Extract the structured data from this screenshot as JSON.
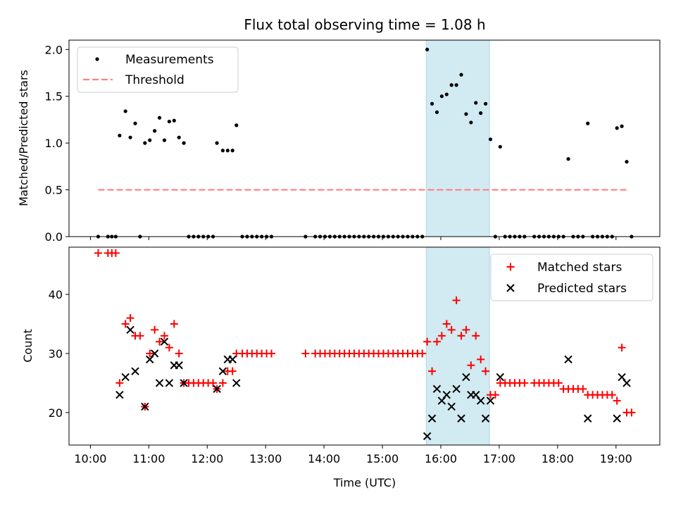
{
  "chart_data": {
    "type": "scatter",
    "title": "Flux total observing time = 1.08 h",
    "xlabel": "Time (UTC)",
    "x_ticks": [
      "10:00",
      "11:00",
      "12:00",
      "13:00",
      "14:00",
      "15:00",
      "16:00",
      "17:00",
      "18:00",
      "19:00"
    ],
    "xlim": [
      "09:38",
      "19:45"
    ],
    "shaded_interval": [
      "15:45",
      "16:50"
    ],
    "colors": {
      "shade": "#add8e6",
      "matched": "#ff0000",
      "predicted": "#000000",
      "threshold": "#ff7f7f",
      "measure": "#000000"
    },
    "panels": [
      {
        "id": "ratio",
        "ylabel": "Matched/Predicted stars",
        "ylim": [
          0,
          2.1
        ],
        "y_ticks": [
          "0.0",
          "0.5",
          "1.0",
          "1.5",
          "2.0"
        ],
        "legend": {
          "placement": "upper-left",
          "entries": [
            "Measurements",
            "Threshold"
          ]
        },
        "threshold": {
          "name": "Threshold",
          "value": 0.5,
          "x_start": "10:08",
          "x_end": "19:13"
        },
        "measurements": {
          "name": "Measurements",
          "points": [
            [
              "10:08",
              0
            ],
            [
              "10:18",
              0
            ],
            [
              "10:22",
              0
            ],
            [
              "10:26",
              0
            ],
            [
              "10:30",
              1.08
            ],
            [
              "10:36",
              1.34
            ],
            [
              "10:41",
              1.06
            ],
            [
              "10:46",
              1.21
            ],
            [
              "10:51",
              0
            ],
            [
              "10:56",
              1.0
            ],
            [
              "11:01",
              1.03
            ],
            [
              "11:06",
              1.13
            ],
            [
              "11:11",
              1.27
            ],
            [
              "11:16",
              1.03
            ],
            [
              "11:21",
              1.23
            ],
            [
              "11:26",
              1.24
            ],
            [
              "11:31",
              1.06
            ],
            [
              "11:36",
              1.0
            ],
            [
              "11:41",
              0
            ],
            [
              "11:46",
              0
            ],
            [
              "11:51",
              0
            ],
            [
              "11:56",
              0
            ],
            [
              "12:01",
              0
            ],
            [
              "12:06",
              0
            ],
            [
              "12:10",
              1.0
            ],
            [
              "12:16",
              0.92
            ],
            [
              "12:21",
              0.92
            ],
            [
              "12:26",
              0.92
            ],
            [
              "12:30",
              1.19
            ],
            [
              "12:36",
              0
            ],
            [
              "12:41",
              0
            ],
            [
              "12:46",
              0
            ],
            [
              "12:51",
              0
            ],
            [
              "12:56",
              0
            ],
            [
              "13:01",
              0
            ],
            [
              "13:06",
              0
            ],
            [
              "13:41",
              0
            ],
            [
              "13:51",
              0
            ],
            [
              "13:56",
              0
            ],
            [
              "14:01",
              0
            ],
            [
              "14:06",
              0
            ],
            [
              "14:11",
              0
            ],
            [
              "14:16",
              0
            ],
            [
              "14:21",
              0
            ],
            [
              "14:26",
              0
            ],
            [
              "14:31",
              0
            ],
            [
              "14:36",
              0
            ],
            [
              "14:41",
              0
            ],
            [
              "14:46",
              0
            ],
            [
              "14:51",
              0
            ],
            [
              "14:56",
              0
            ],
            [
              "15:01",
              0
            ],
            [
              "15:06",
              0
            ],
            [
              "15:11",
              0
            ],
            [
              "15:16",
              0
            ],
            [
              "15:21",
              0
            ],
            [
              "15:26",
              0
            ],
            [
              "15:31",
              0
            ],
            [
              "15:36",
              0
            ],
            [
              "15:41",
              0
            ],
            [
              "15:46",
              2.0
            ],
            [
              "15:51",
              1.42
            ],
            [
              "15:56",
              1.33
            ],
            [
              "16:01",
              1.5
            ],
            [
              "16:06",
              1.52
            ],
            [
              "16:11",
              1.62
            ],
            [
              "16:16",
              1.62
            ],
            [
              "16:21",
              1.73
            ],
            [
              "16:26",
              1.31
            ],
            [
              "16:31",
              1.22
            ],
            [
              "16:36",
              1.43
            ],
            [
              "16:41",
              1.32
            ],
            [
              "16:46",
              1.42
            ],
            [
              "16:51",
              1.04
            ],
            [
              "16:56",
              0
            ],
            [
              "17:01",
              0.96
            ],
            [
              "17:06",
              0
            ],
            [
              "17:11",
              0
            ],
            [
              "17:16",
              0
            ],
            [
              "17:21",
              0
            ],
            [
              "17:26",
              0
            ],
            [
              "17:36",
              0
            ],
            [
              "17:41",
              0
            ],
            [
              "17:46",
              0
            ],
            [
              "17:51",
              0
            ],
            [
              "17:56",
              0
            ],
            [
              "18:01",
              0
            ],
            [
              "18:06",
              0
            ],
            [
              "18:11",
              0.83
            ],
            [
              "18:16",
              0
            ],
            [
              "18:21",
              0
            ],
            [
              "18:26",
              0
            ],
            [
              "18:31",
              1.21
            ],
            [
              "18:36",
              0
            ],
            [
              "18:41",
              0
            ],
            [
              "18:46",
              0
            ],
            [
              "18:51",
              0
            ],
            [
              "18:56",
              0
            ],
            [
              "19:01",
              1.16
            ],
            [
              "19:06",
              1.18
            ],
            [
              "19:11",
              0.8
            ],
            [
              "19:16",
              0
            ]
          ]
        }
      },
      {
        "id": "count",
        "ylabel": "Count",
        "ylim": [
          14.5,
          48
        ],
        "y_ticks": [
          "20",
          "30",
          "40"
        ],
        "legend": {
          "placement": "upper-right",
          "entries": [
            "Matched stars",
            "Predicted stars"
          ]
        },
        "matched": {
          "name": "Matched stars",
          "points": [
            [
              "10:08",
              47
            ],
            [
              "10:18",
              47
            ],
            [
              "10:22",
              47
            ],
            [
              "10:26",
              47
            ],
            [
              "10:30",
              25
            ],
            [
              "10:36",
              35
            ],
            [
              "10:41",
              36
            ],
            [
              "10:46",
              33
            ],
            [
              "10:51",
              33
            ],
            [
              "10:56",
              21
            ],
            [
              "11:01",
              30
            ],
            [
              "11:06",
              34
            ],
            [
              "11:11",
              32
            ],
            [
              "11:16",
              33
            ],
            [
              "11:21",
              31
            ],
            [
              "11:26",
              35
            ],
            [
              "11:31",
              30
            ],
            [
              "11:36",
              25
            ],
            [
              "11:41",
              25
            ],
            [
              "11:46",
              25
            ],
            [
              "11:51",
              25
            ],
            [
              "11:56",
              25
            ],
            [
              "12:01",
              25
            ],
            [
              "12:06",
              25
            ],
            [
              "12:10",
              24
            ],
            [
              "12:16",
              25
            ],
            [
              "12:21",
              27
            ],
            [
              "12:26",
              27
            ],
            [
              "12:30",
              30
            ],
            [
              "12:36",
              30
            ],
            [
              "12:41",
              30
            ],
            [
              "12:46",
              30
            ],
            [
              "12:51",
              30
            ],
            [
              "12:56",
              30
            ],
            [
              "13:01",
              30
            ],
            [
              "13:06",
              30
            ],
            [
              "13:41",
              30
            ],
            [
              "13:51",
              30
            ],
            [
              "13:56",
              30
            ],
            [
              "14:01",
              30
            ],
            [
              "14:06",
              30
            ],
            [
              "14:11",
              30
            ],
            [
              "14:16",
              30
            ],
            [
              "14:21",
              30
            ],
            [
              "14:26",
              30
            ],
            [
              "14:31",
              30
            ],
            [
              "14:36",
              30
            ],
            [
              "14:41",
              30
            ],
            [
              "14:46",
              30
            ],
            [
              "14:51",
              30
            ],
            [
              "14:56",
              30
            ],
            [
              "15:01",
              30
            ],
            [
              "15:06",
              30
            ],
            [
              "15:11",
              30
            ],
            [
              "15:16",
              30
            ],
            [
              "15:21",
              30
            ],
            [
              "15:26",
              30
            ],
            [
              "15:31",
              30
            ],
            [
              "15:36",
              30
            ],
            [
              "15:41",
              30
            ],
            [
              "15:46",
              32
            ],
            [
              "15:51",
              27
            ],
            [
              "15:56",
              32
            ],
            [
              "16:01",
              33
            ],
            [
              "16:06",
              35
            ],
            [
              "16:11",
              34
            ],
            [
              "16:16",
              39
            ],
            [
              "16:21",
              33
            ],
            [
              "16:26",
              34
            ],
            [
              "16:31",
              28
            ],
            [
              "16:36",
              33
            ],
            [
              "16:41",
              29
            ],
            [
              "16:46",
              27
            ],
            [
              "16:51",
              23
            ],
            [
              "16:56",
              23
            ],
            [
              "17:01",
              25
            ],
            [
              "17:06",
              25
            ],
            [
              "17:11",
              25
            ],
            [
              "17:16",
              25
            ],
            [
              "17:21",
              25
            ],
            [
              "17:26",
              25
            ],
            [
              "17:36",
              25
            ],
            [
              "17:41",
              25
            ],
            [
              "17:46",
              25
            ],
            [
              "17:51",
              25
            ],
            [
              "17:56",
              25
            ],
            [
              "18:01",
              25
            ],
            [
              "18:06",
              24
            ],
            [
              "18:11",
              24
            ],
            [
              "18:16",
              24
            ],
            [
              "18:21",
              24
            ],
            [
              "18:26",
              24
            ],
            [
              "18:31",
              23
            ],
            [
              "18:36",
              23
            ],
            [
              "18:41",
              23
            ],
            [
              "18:46",
              23
            ],
            [
              "18:51",
              23
            ],
            [
              "18:56",
              23
            ],
            [
              "19:01",
              22
            ],
            [
              "19:06",
              31
            ],
            [
              "19:11",
              20
            ],
            [
              "19:16",
              20
            ]
          ]
        },
        "predicted": {
          "name": "Predicted stars",
          "points": [
            [
              "10:30",
              23
            ],
            [
              "10:36",
              26
            ],
            [
              "10:41",
              34
            ],
            [
              "10:46",
              27
            ],
            [
              "10:56",
              21
            ],
            [
              "11:01",
              29
            ],
            [
              "11:06",
              30
            ],
            [
              "11:11",
              25
            ],
            [
              "11:16",
              32
            ],
            [
              "11:21",
              25
            ],
            [
              "11:26",
              28
            ],
            [
              "11:31",
              28
            ],
            [
              "11:36",
              25
            ],
            [
              "12:10",
              24
            ],
            [
              "12:16",
              27
            ],
            [
              "12:21",
              29
            ],
            [
              "12:26",
              29
            ],
            [
              "12:30",
              25
            ],
            [
              "15:46",
              16
            ],
            [
              "15:51",
              19
            ],
            [
              "15:56",
              24
            ],
            [
              "16:01",
              22
            ],
            [
              "16:06",
              23
            ],
            [
              "16:11",
              21
            ],
            [
              "16:16",
              24
            ],
            [
              "16:21",
              19
            ],
            [
              "16:26",
              26
            ],
            [
              "16:31",
              23
            ],
            [
              "16:36",
              23
            ],
            [
              "16:41",
              22
            ],
            [
              "16:46",
              19
            ],
            [
              "16:51",
              22
            ],
            [
              "17:01",
              26
            ],
            [
              "18:11",
              29
            ],
            [
              "18:31",
              19
            ],
            [
              "19:01",
              19
            ],
            [
              "19:06",
              26
            ],
            [
              "19:11",
              25
            ]
          ]
        }
      }
    ]
  }
}
